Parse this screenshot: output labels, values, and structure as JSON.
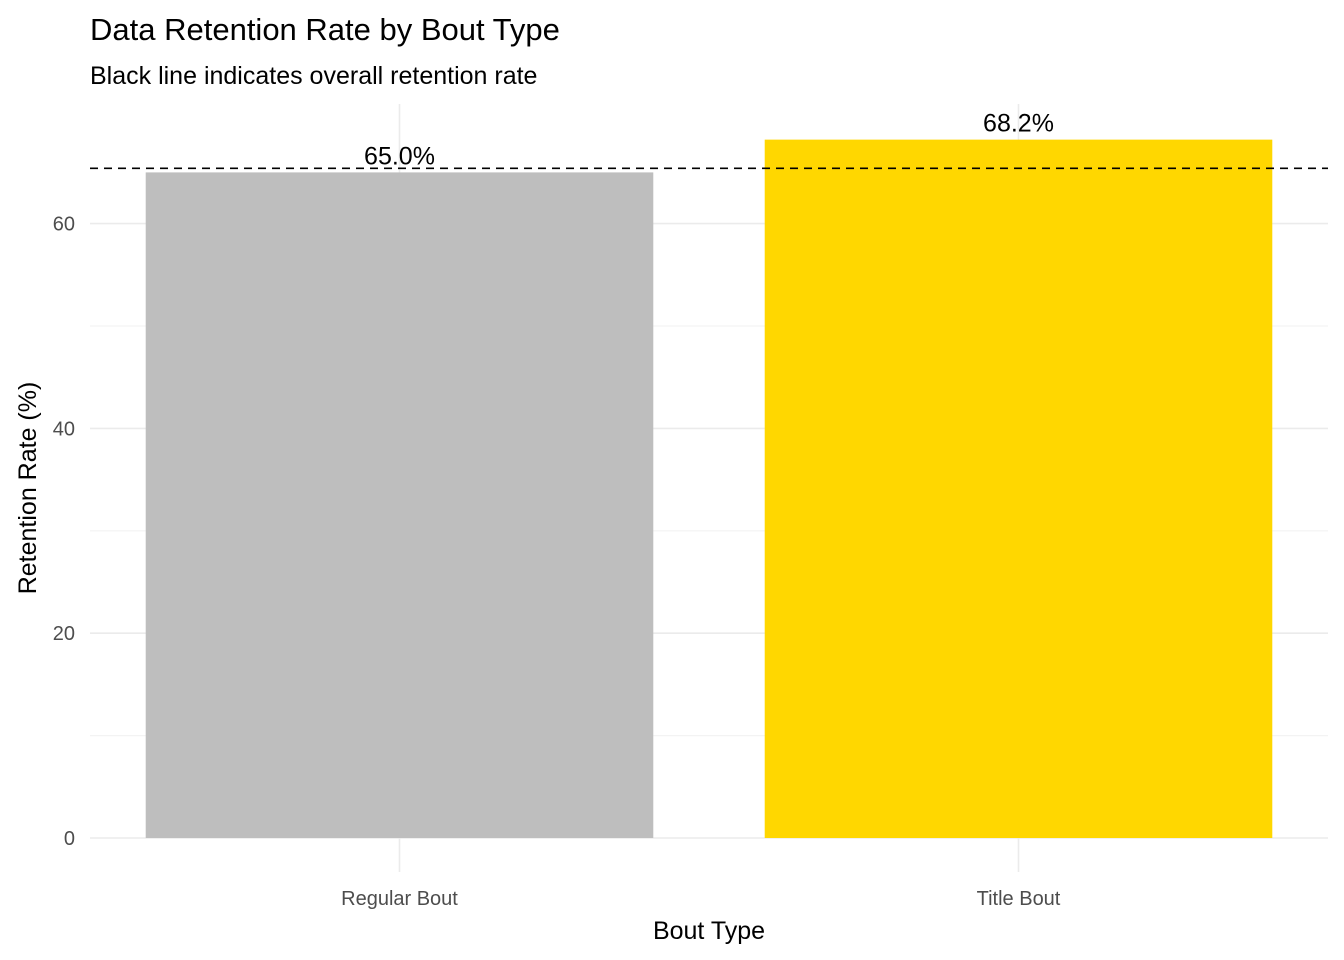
{
  "chart_data": {
    "type": "bar",
    "title": "Data Retention Rate by Bout Type",
    "subtitle": "Black line indicates overall retention rate",
    "xlabel": "Bout Type",
    "ylabel": "Retention Rate (%)",
    "categories": [
      "Regular Bout",
      "Title Bout"
    ],
    "values": [
      65.0,
      68.2
    ],
    "value_labels": [
      "65.0%",
      "68.2%"
    ],
    "bar_colors": [
      "#bebebe",
      "#ffd700"
    ],
    "reference_line": {
      "value": 65.4,
      "style": "dashed",
      "color": "#000000"
    },
    "ylim": [
      0,
      70
    ],
    "y_ticks": [
      0,
      20,
      40,
      60
    ],
    "y_tick_labels": [
      "0",
      "20",
      "40",
      "60"
    ],
    "grid": true,
    "legend": "none"
  }
}
